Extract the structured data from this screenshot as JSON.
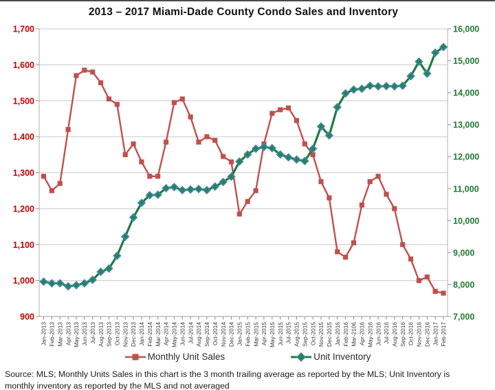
{
  "chart_data": {
    "type": "line",
    "title": "2013 – 2017 Miami-Dade County Condo Sales and Inventory",
    "categories": [
      "Jan-2013",
      "Feb-2013",
      "Mar-2013",
      "Apr-2013",
      "May-2013",
      "Jun-2013",
      "Jul-2013",
      "Aug-2013",
      "Sep-2013",
      "Oct-2013",
      "Nov-2013",
      "Dec-2013",
      "Jan-2014",
      "Feb-2014",
      "Mar-2014",
      "Apr-2014",
      "May-2014",
      "Jun-2014",
      "Jul-2014",
      "Aug-2014",
      "Sep-2014",
      "Oct-2014",
      "Nov-2014",
      "Dec-2014",
      "Jan-2015",
      "Feb-2015",
      "Mar-2015",
      "Apr-2015",
      "May-2015",
      "Jun-2015",
      "Jul-2015",
      "Aug-2015",
      "Sep-2015",
      "Oct-2015",
      "Nov-2015",
      "Dec-2015",
      "Jan-2016",
      "Feb-2016",
      "Mar-2106",
      "Apr-2016",
      "May-2016",
      "Jun-2016",
      "Jul-2016",
      "Aug-2016",
      "Sep-2016",
      "Oct-2016",
      "Nov-2016",
      "Dec-2016",
      "Jan-2017",
      "Feb-2017"
    ],
    "series": [
      {
        "name": "Monthly Unit Sales",
        "axis": "left",
        "marker": "square",
        "color": "#C0504D",
        "values": [
          1290,
          1250,
          1270,
          1420,
          1570,
          1585,
          1580,
          1550,
          1505,
          1490,
          1350,
          1380,
          1330,
          1290,
          1290,
          1385,
          1495,
          1505,
          1455,
          1385,
          1400,
          1390,
          1345,
          1330,
          1185,
          1220,
          1250,
          1380,
          1465,
          1475,
          1480,
          1445,
          1380,
          1350,
          1275,
          1230,
          1080,
          1065,
          1105,
          1210,
          1275,
          1290,
          1240,
          1200,
          1100,
          1060,
          1000,
          1010,
          970,
          965
        ]
      },
      {
        "name": "Unit Inventory",
        "axis": "right",
        "marker": "diamond",
        "color": "#1E7B43",
        "marker_fill": "#1E8A4C",
        "marker_stroke": "#4F81BD",
        "values": [
          8090,
          8040,
          8040,
          7945,
          7980,
          8040,
          8150,
          8400,
          8500,
          8900,
          9500,
          10100,
          10555,
          10795,
          10810,
          11015,
          11050,
          10955,
          10975,
          10990,
          10955,
          11065,
          11210,
          11375,
          11850,
          12070,
          12250,
          12305,
          12265,
          12070,
          11980,
          11910,
          11865,
          12250,
          12945,
          12665,
          13550,
          13980,
          14100,
          14125,
          14220,
          14200,
          14210,
          14200,
          14220,
          14520,
          14975,
          14600,
          15255,
          15430
        ]
      }
    ],
    "left_axis": {
      "min": 900,
      "max": 1700,
      "step": 100,
      "label_color": "#C00000"
    },
    "right_axis": {
      "min": 7000,
      "max": 16000,
      "step": 1000,
      "label_color": "#1E7B34"
    },
    "grid": "horizontal, aligned to left axis",
    "legend_position": "bottom"
  },
  "legend": {
    "sales_label": "Monthly Unit Sales",
    "inventory_label": "Unit Inventory"
  },
  "source": {
    "lines": [
      "Source: MLS; Monthly Units Sales in this chart is the 3 month trailing average as reported by the MLS; Unit Inventory is",
      "monthly inventory as reported by the MLS and not averaged"
    ]
  },
  "colors": {
    "sales": "#C0504D",
    "inventory_line": "#1E7B43",
    "inventory_marker": "#1E8A4C",
    "inventory_marker_border": "#4F81BD",
    "left_axis_labels": "#C00000",
    "right_axis_labels": "#1E7B34",
    "gridline": "#C8C8C8",
    "plot_border": "#AFAFAF",
    "tick": "#8C8C8C",
    "x_labels": "#3A3A3A"
  }
}
